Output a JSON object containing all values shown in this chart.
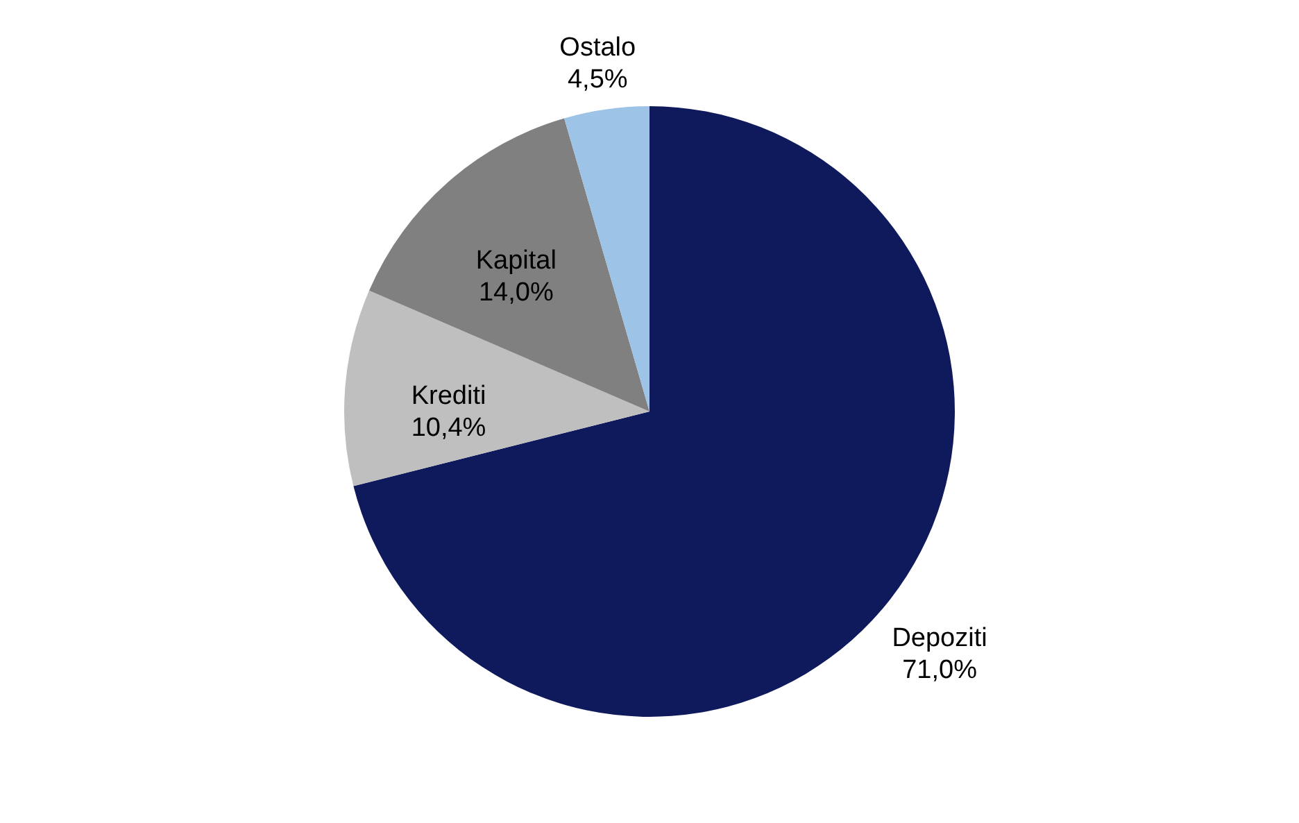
{
  "chart_data": {
    "type": "pie",
    "categories": [
      "Depoziti",
      "Krediti",
      "Kapital",
      "Ostalo"
    ],
    "values": [
      71.0,
      10.4,
      14.0,
      4.5
    ],
    "value_labels": [
      "71,0%",
      "10,4%",
      "14,0%",
      "4,5%"
    ],
    "colors": [
      "#0f1a5c",
      "#bfbfbf",
      "#808080",
      "#9dc3e6"
    ],
    "legend": false
  }
}
